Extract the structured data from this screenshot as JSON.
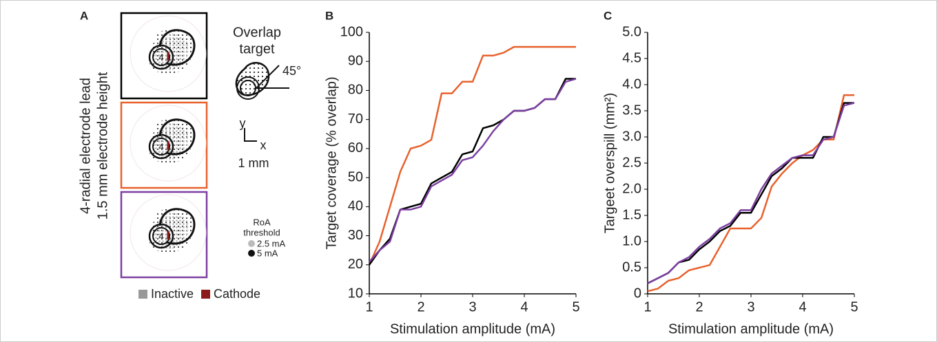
{
  "panel_a": {
    "letter": "A",
    "side_label_1": "4-radial electrode lead",
    "side_label_2": "1.5 mm electrode height",
    "electrode_label": "4",
    "overlap_1": "Overlap",
    "overlap_2": "target",
    "angle": "45°",
    "axis_y": "y",
    "axis_x": "x",
    "scale": "1 mm",
    "roa_1": "RoA",
    "roa_2": "threshold",
    "roa_low": "2.5 mA",
    "roa_high": "5 mA",
    "inactive": "Inactive",
    "cathode": "Cathode"
  },
  "chart_data": [
    {
      "type": "line",
      "letter": "B",
      "xlabel": "Stimulation amplitude (mA)",
      "ylabel": "Target coverage (% overlap)",
      "x": [
        1,
        1.2,
        1.4,
        1.6,
        1.8,
        2,
        2.2,
        2.4,
        2.6,
        2.8,
        3,
        3.2,
        3.4,
        3.6,
        3.8,
        4,
        4.2,
        4.4,
        4.6,
        4.8,
        5
      ],
      "xlim": [
        1,
        5
      ],
      "xticks": [
        1,
        2,
        3,
        4,
        5
      ],
      "ylim": [
        10,
        100
      ],
      "yticks": [
        10,
        20,
        30,
        40,
        50,
        60,
        70,
        80,
        90,
        100
      ],
      "series": [
        {
          "color": "#e8612c",
          "values": [
            20,
            28,
            40,
            52,
            60,
            61,
            63,
            79,
            79,
            83,
            83,
            92,
            92,
            93,
            95,
            95,
            95,
            95,
            95,
            95,
            95
          ]
        },
        {
          "color": "#000000",
          "values": [
            20,
            25,
            29,
            39,
            40,
            41,
            48,
            50,
            52,
            58,
            59,
            67,
            68,
            70,
            73,
            73,
            74,
            77,
            77,
            84,
            84
          ]
        },
        {
          "color": "#7b3fa0",
          "values": [
            21,
            25,
            28,
            39,
            39,
            40,
            47,
            49,
            51,
            56,
            57,
            61,
            66,
            70,
            73,
            73,
            74,
            77,
            77,
            83,
            84
          ]
        }
      ]
    },
    {
      "type": "line",
      "letter": "C",
      "xlabel": "Stimulation amplitude (mA)",
      "ylabel": "Targeet overspill (mm²)",
      "x": [
        1,
        1.2,
        1.4,
        1.6,
        1.8,
        2,
        2.2,
        2.4,
        2.6,
        2.8,
        3,
        3.2,
        3.4,
        3.6,
        3.8,
        4,
        4.2,
        4.4,
        4.6,
        4.8,
        5
      ],
      "xlim": [
        1,
        5
      ],
      "xticks": [
        1,
        2,
        3,
        4,
        5
      ],
      "ylim": [
        0,
        5
      ],
      "yticks": [
        0,
        0.5,
        {
          "value": 1,
          "label": "1.0"
        },
        1.5,
        {
          "value": 2,
          "label": "2.0"
        },
        2.5,
        {
          "value": 3,
          "label": "3.0"
        },
        3.5,
        {
          "value": 4,
          "label": "4.0"
        },
        4.5,
        {
          "value": 5,
          "label": "5.0"
        }
      ],
      "series": [
        {
          "color": "#e8612c",
          "values": [
            0.05,
            0.1,
            0.25,
            0.3,
            0.45,
            0.5,
            0.55,
            0.9,
            1.25,
            1.25,
            1.25,
            1.45,
            2.05,
            2.3,
            2.5,
            2.65,
            2.75,
            2.95,
            2.95,
            3.8,
            3.8
          ]
        },
        {
          "color": "#000000",
          "values": [
            0.2,
            0.3,
            0.4,
            0.6,
            0.65,
            0.85,
            1,
            1.2,
            1.3,
            1.55,
            1.55,
            1.9,
            2.25,
            2.4,
            2.6,
            2.6,
            2.6,
            3,
            3,
            3.65,
            3.65
          ]
        },
        {
          "color": "#7b3fa0",
          "values": [
            0.2,
            0.3,
            0.4,
            0.6,
            0.7,
            0.9,
            1.05,
            1.25,
            1.35,
            1.6,
            1.6,
            2,
            2.3,
            2.45,
            2.6,
            2.65,
            2.65,
            2.95,
            3,
            3.6,
            3.65
          ]
        }
      ]
    }
  ]
}
